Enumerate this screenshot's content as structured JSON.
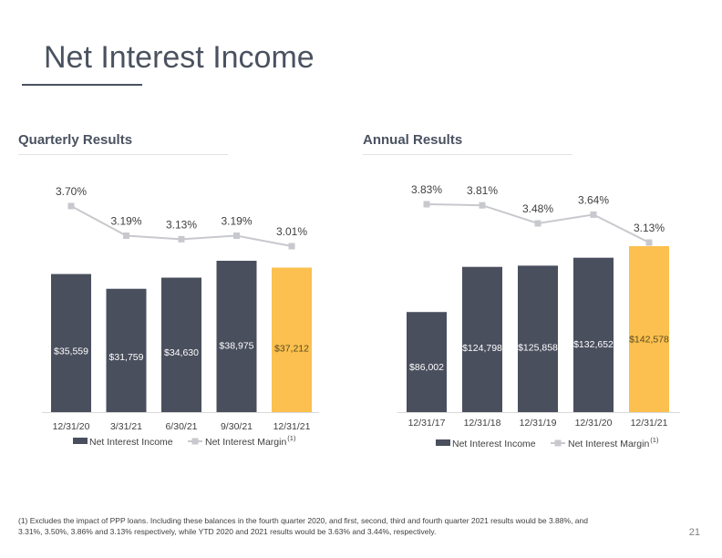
{
  "page": {
    "title": "Net Interest Income",
    "footnote": "(1) Excludes the impact of PPP loans.  Including these balances in the fourth quarter 2020,  and first, second, third and fourth quarter 2021 results would be 3.88%, and 3.31%, 3.50%, 3.86% and 3.13% respectively, while YTD 2020 and 2021 results would be 3.63% and 3.44%, respectively.",
    "page_number": "21"
  },
  "colors": {
    "bar": "#4a4f5e",
    "highlight": "#fbc04f",
    "line": "#c8c9ce"
  },
  "chart_data": [
    {
      "type": "bar",
      "title": "Quarterly Results",
      "categories": [
        "12/31/20",
        "3/31/21",
        "6/30/21",
        "9/30/21",
        "12/31/21"
      ],
      "series": [
        {
          "name": "Net Interest Income",
          "values": [
            35559,
            31759,
            34630,
            38975,
            37212
          ],
          "labels": [
            "$35,559",
            "$31,759",
            "$34,630",
            "$38,975",
            "$37,212"
          ]
        },
        {
          "name": "Net Interest Margin",
          "type": "line",
          "values": [
            3.7,
            3.19,
            3.13,
            3.19,
            3.01
          ],
          "labels": [
            "3.70%",
            "3.19%",
            "3.13%",
            "3.19%",
            "3.01%"
          ]
        }
      ],
      "legend_note": "(1)",
      "legend": "bottom",
      "highlight_index": 4
    },
    {
      "type": "bar",
      "title": "Annual Results",
      "categories": [
        "12/31/17",
        "12/31/18",
        "12/31/19",
        "12/31/20",
        "12/31/21"
      ],
      "series": [
        {
          "name": "Net Interest Income",
          "values": [
            86002,
            124798,
            125858,
            132652,
            142578
          ],
          "labels": [
            "$86,002",
            "$124,798",
            "$125,858",
            "$132,652",
            "$142,578"
          ]
        },
        {
          "name": "Net Interest Margin",
          "type": "line",
          "values": [
            3.83,
            3.81,
            3.48,
            3.64,
            3.13
          ],
          "labels": [
            "3.83%",
            "3.81%",
            "3.48%",
            "3.64%",
            "3.13%"
          ]
        }
      ],
      "legend_note": "(1)",
      "legend": "bottom",
      "highlight_index": 4
    }
  ]
}
